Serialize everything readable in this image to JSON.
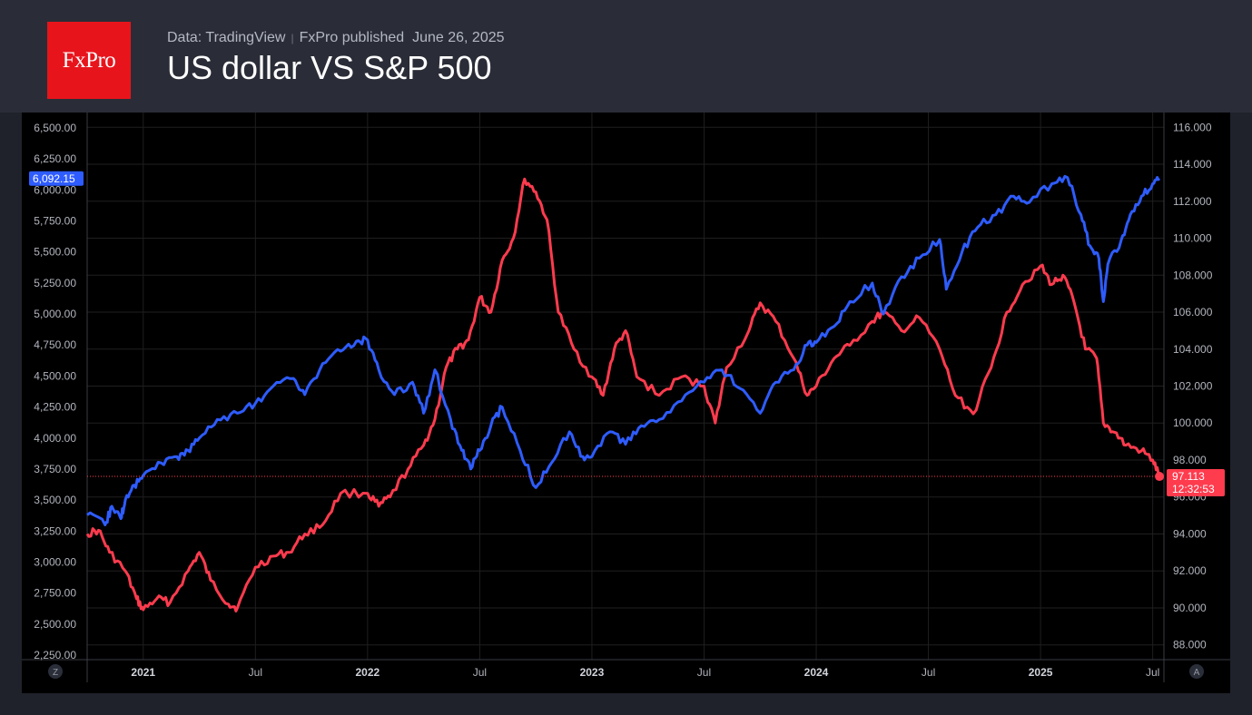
{
  "header": {
    "logo_text": "FxPro",
    "source_label": "Data: TradingView",
    "publisher_label": "FxPro published",
    "published_date": "June 26, 2025",
    "title": "US dollar VS S&P 500"
  },
  "colors": {
    "sp500": "#2e5cff",
    "usd": "#ff3b4e",
    "background": "#000000",
    "grid": "#1f1f1f",
    "text": "#b2b5be"
  },
  "chart_data": {
    "type": "line",
    "title": "US dollar VS S&P 500",
    "x_range": [
      2020.75,
      2025.55
    ],
    "x_ticks": [
      {
        "t": 2021.0,
        "label": "2021",
        "bold": true
      },
      {
        "t": 2021.5,
        "label": "Jul",
        "bold": false
      },
      {
        "t": 2022.0,
        "label": "2022",
        "bold": true
      },
      {
        "t": 2022.5,
        "label": "Jul",
        "bold": false
      },
      {
        "t": 2023.0,
        "label": "2023",
        "bold": true
      },
      {
        "t": 2023.5,
        "label": "Jul",
        "bold": false
      },
      {
        "t": 2024.0,
        "label": "2024",
        "bold": true
      },
      {
        "t": 2024.5,
        "label": "Jul",
        "bold": false
      },
      {
        "t": 2025.0,
        "label": "2025",
        "bold": true
      },
      {
        "t": 2025.5,
        "label": "Jul",
        "bold": false
      }
    ],
    "left_axis": {
      "series": "S&P 500",
      "range": [
        2250,
        6500
      ],
      "ticks": [
        "6,500.00",
        "6,250.00",
        "6,000.00",
        "5,750.00",
        "5,500.00",
        "5,250.00",
        "5,000.00",
        "4,750.00",
        "4,500.00",
        "4,250.00",
        "4,000.00",
        "3,750.00",
        "3,500.00",
        "3,250.00",
        "3,000.00",
        "2,750.00",
        "2,500.00",
        "2,250.00"
      ],
      "tick_values": [
        6500,
        6250,
        6000,
        5750,
        5500,
        5250,
        5000,
        4750,
        4500,
        4250,
        4000,
        3750,
        3500,
        3250,
        3000,
        2750,
        2500,
        2250
      ]
    },
    "right_axis": {
      "series": "US Dollar Index",
      "range": [
        87.2,
        116.8
      ],
      "ticks": [
        "116.000",
        "114.000",
        "112.000",
        "110.000",
        "108.000",
        "106.000",
        "104.000",
        "102.000",
        "100.000",
        "98.000",
        "96.000",
        "94.000",
        "92.000",
        "90.000",
        "88.000"
      ],
      "tick_values": [
        116,
        114,
        112,
        110,
        108,
        106,
        104,
        102,
        100,
        98,
        96,
        94,
        92,
        90,
        88
      ]
    },
    "series": [
      {
        "name": "S&P 500",
        "axis": "left",
        "last_value_label": "6,092.15",
        "last_value": 6092.15,
        "points": [
          [
            2020.75,
            3380
          ],
          [
            2020.83,
            3300
          ],
          [
            2020.86,
            3450
          ],
          [
            2020.9,
            3350
          ],
          [
            2020.92,
            3500
          ],
          [
            2020.96,
            3620
          ],
          [
            2021.0,
            3700
          ],
          [
            2021.08,
            3800
          ],
          [
            2021.15,
            3850
          ],
          [
            2021.2,
            3900
          ],
          [
            2021.25,
            4000
          ],
          [
            2021.33,
            4150
          ],
          [
            2021.42,
            4200
          ],
          [
            2021.5,
            4280
          ],
          [
            2021.58,
            4420
          ],
          [
            2021.67,
            4480
          ],
          [
            2021.72,
            4350
          ],
          [
            2021.8,
            4600
          ],
          [
            2021.88,
            4700
          ],
          [
            2021.95,
            4780
          ],
          [
            2022.0,
            4790
          ],
          [
            2022.05,
            4550
          ],
          [
            2022.12,
            4350
          ],
          [
            2022.2,
            4450
          ],
          [
            2022.25,
            4200
          ],
          [
            2022.3,
            4550
          ],
          [
            2022.37,
            4150
          ],
          [
            2022.42,
            3900
          ],
          [
            2022.46,
            3750
          ],
          [
            2022.5,
            3900
          ],
          [
            2022.55,
            4100
          ],
          [
            2022.6,
            4250
          ],
          [
            2022.68,
            3900
          ],
          [
            2022.75,
            3600
          ],
          [
            2022.82,
            3800
          ],
          [
            2022.9,
            4050
          ],
          [
            2022.96,
            3850
          ],
          [
            2023.0,
            3850
          ],
          [
            2023.08,
            4050
          ],
          [
            2023.15,
            3950
          ],
          [
            2023.22,
            4100
          ],
          [
            2023.3,
            4150
          ],
          [
            2023.4,
            4300
          ],
          [
            2023.5,
            4450
          ],
          [
            2023.58,
            4550
          ],
          [
            2023.66,
            4400
          ],
          [
            2023.75,
            4200
          ],
          [
            2023.82,
            4450
          ],
          [
            2023.9,
            4550
          ],
          [
            2023.96,
            4750
          ],
          [
            2024.0,
            4770
          ],
          [
            2024.08,
            4900
          ],
          [
            2024.15,
            5100
          ],
          [
            2024.25,
            5250
          ],
          [
            2024.3,
            5000
          ],
          [
            2024.38,
            5300
          ],
          [
            2024.46,
            5450
          ],
          [
            2024.55,
            5600
          ],
          [
            2024.58,
            5200
          ],
          [
            2024.65,
            5500
          ],
          [
            2024.72,
            5700
          ],
          [
            2024.8,
            5800
          ],
          [
            2024.88,
            5950
          ],
          [
            2024.95,
            5900
          ],
          [
            2025.05,
            6050
          ],
          [
            2025.12,
            6100
          ],
          [
            2025.18,
            5800
          ],
          [
            2025.22,
            5550
          ],
          [
            2025.26,
            5450
          ],
          [
            2025.28,
            5100
          ],
          [
            2025.3,
            5400
          ],
          [
            2025.36,
            5600
          ],
          [
            2025.4,
            5800
          ],
          [
            2025.45,
            5950
          ],
          [
            2025.5,
            6050
          ],
          [
            2025.53,
            6092
          ]
        ]
      },
      {
        "name": "US Dollar Index",
        "axis": "right",
        "last_value_label": "97.113",
        "last_value": 97.113,
        "time_label": "12:32:53",
        "points": [
          [
            2020.75,
            94.0
          ],
          [
            2020.8,
            94.2
          ],
          [
            2020.85,
            93.0
          ],
          [
            2020.92,
            92.0
          ],
          [
            2020.97,
            90.5
          ],
          [
            2021.0,
            89.9
          ],
          [
            2021.06,
            90.5
          ],
          [
            2021.12,
            90.3
          ],
          [
            2021.2,
            92.0
          ],
          [
            2021.25,
            93.0
          ],
          [
            2021.3,
            91.5
          ],
          [
            2021.38,
            90.2
          ],
          [
            2021.42,
            90.0
          ],
          [
            2021.5,
            92.2
          ],
          [
            2021.58,
            92.8
          ],
          [
            2021.65,
            93.0
          ],
          [
            2021.72,
            94.0
          ],
          [
            2021.8,
            94.5
          ],
          [
            2021.88,
            96.2
          ],
          [
            2022.0,
            96.2
          ],
          [
            2022.05,
            95.5
          ],
          [
            2022.1,
            96.0
          ],
          [
            2022.18,
            97.5
          ],
          [
            2022.25,
            98.8
          ],
          [
            2022.3,
            100.2
          ],
          [
            2022.35,
            103.0
          ],
          [
            2022.4,
            104.0
          ],
          [
            2022.45,
            104.5
          ],
          [
            2022.5,
            106.8
          ],
          [
            2022.55,
            106.0
          ],
          [
            2022.6,
            108.8
          ],
          [
            2022.65,
            110.0
          ],
          [
            2022.7,
            113.2
          ],
          [
            2022.75,
            112.5
          ],
          [
            2022.8,
            111.0
          ],
          [
            2022.85,
            106.0
          ],
          [
            2022.92,
            104.0
          ],
          [
            2023.0,
            102.5
          ],
          [
            2023.05,
            101.5
          ],
          [
            2023.1,
            104.0
          ],
          [
            2023.15,
            105.0
          ],
          [
            2023.2,
            102.5
          ],
          [
            2023.3,
            101.5
          ],
          [
            2023.4,
            102.5
          ],
          [
            2023.5,
            102.0
          ],
          [
            2023.55,
            100.0
          ],
          [
            2023.6,
            103.0
          ],
          [
            2023.7,
            105.0
          ],
          [
            2023.75,
            106.5
          ],
          [
            2023.82,
            105.5
          ],
          [
            2023.9,
            103.5
          ],
          [
            2023.96,
            101.5
          ],
          [
            2024.0,
            102.0
          ],
          [
            2024.08,
            103.5
          ],
          [
            2024.15,
            104.2
          ],
          [
            2024.25,
            105.5
          ],
          [
            2024.3,
            106.0
          ],
          [
            2024.38,
            105.0
          ],
          [
            2024.46,
            105.7
          ],
          [
            2024.55,
            104.0
          ],
          [
            2024.62,
            101.5
          ],
          [
            2024.7,
            100.5
          ],
          [
            2024.78,
            103.0
          ],
          [
            2024.85,
            106.0
          ],
          [
            2024.92,
            107.5
          ],
          [
            2025.0,
            108.5
          ],
          [
            2025.05,
            107.5
          ],
          [
            2025.1,
            108.0
          ],
          [
            2025.15,
            106.5
          ],
          [
            2025.2,
            104.0
          ],
          [
            2025.25,
            103.5
          ],
          [
            2025.28,
            100.0
          ],
          [
            2025.33,
            99.5
          ],
          [
            2025.38,
            98.8
          ],
          [
            2025.45,
            98.5
          ],
          [
            2025.5,
            98.0
          ],
          [
            2025.53,
            97.1
          ]
        ]
      }
    ]
  },
  "axis_buttons": {
    "left": "Z",
    "right": "A"
  }
}
